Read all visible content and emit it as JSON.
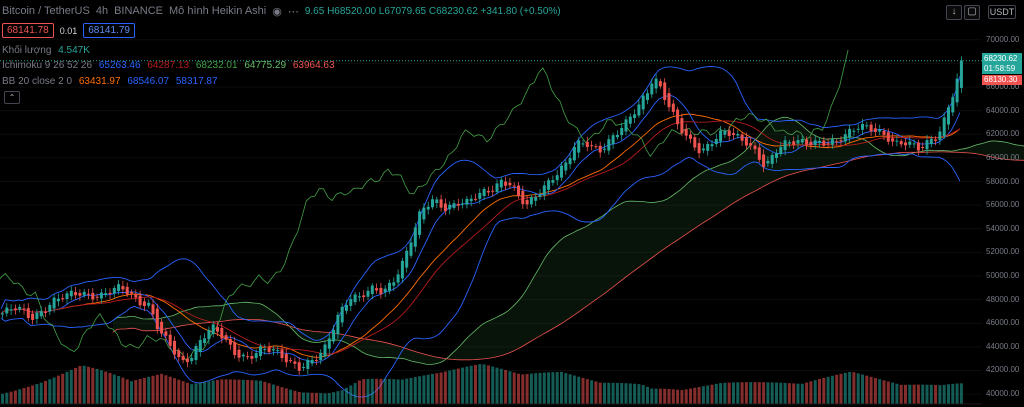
{
  "header": {
    "symbol": "Bitcoin / TetherUS",
    "interval": "4h",
    "exchange": "BINANCE",
    "chart_style": "Mô hình Heikin Ashi",
    "ohlc_open_fragment": "9.65",
    "high": "H68520.00",
    "low": "L67079.65",
    "close": "C68230.62",
    "change": "+341.80 (+0.50%)"
  },
  "trade": {
    "sell_price": "68141.78",
    "spread": "0.01",
    "buy_price": "68141.79"
  },
  "legends": {
    "volume_label": "Khối lượng",
    "volume_value": "4.547K",
    "ichimoku_label": "Ichimoku 9 26 52 26",
    "ichimoku_values": [
      "65263.46",
      "64287.13",
      "68232.01",
      "64775.29",
      "63964.63"
    ],
    "bb_label": "BB 20 close 2 0",
    "bb_values": [
      "63431.97",
      "68546.07",
      "58317.87"
    ]
  },
  "price_scale": {
    "currency": "USDT",
    "ticks": [
      "70000.00",
      "68000.00",
      "66000.00",
      "64000.00",
      "62000.00",
      "60000.00",
      "58000.00",
      "56000.00",
      "54000.00",
      "52000.00",
      "50000.00",
      "48000.00",
      "46000.00",
      "44000.00",
      "42000.00",
      "40000.00"
    ],
    "last_price": "68230.62",
    "countdown": "01:58:59",
    "line_price": "68130.30"
  },
  "colors": {
    "up": "#26a69a",
    "down": "#ef5350",
    "ichimoku_conv": "#2962ff",
    "ichimoku_base": "#b71c1c",
    "lagging": "#43a047",
    "lead_a": "#a5d6a7",
    "lead_b": "#ef9a9a",
    "bb_basis": "#ff6d00",
    "bb_band": "#2962ff"
  },
  "chart_data": {
    "type": "line",
    "title": "Bitcoin / TetherUS 4h BINANCE",
    "ylim": [
      39500,
      71000
    ],
    "close_path": [
      [
        0,
        46800
      ],
      [
        15,
        47200
      ],
      [
        30,
        46500
      ],
      [
        50,
        47800
      ],
      [
        65,
        48200
      ],
      [
        80,
        48600
      ],
      [
        100,
        48400
      ],
      [
        120,
        48900
      ],
      [
        135,
        48100
      ],
      [
        148,
        47600
      ],
      [
        158,
        45200
      ],
      [
        170,
        43800
      ],
      [
        180,
        42600
      ],
      [
        190,
        43400
      ],
      [
        200,
        44800
      ],
      [
        210,
        45600
      ],
      [
        220,
        44800
      ],
      [
        232,
        43600
      ],
      [
        246,
        43200
      ],
      [
        258,
        43700
      ],
      [
        270,
        43600
      ],
      [
        285,
        43000
      ],
      [
        298,
        42400
      ],
      [
        312,
        42800
      ],
      [
        322,
        43400
      ],
      [
        330,
        45200
      ],
      [
        338,
        47000
      ],
      [
        348,
        48400
      ],
      [
        358,
        48200
      ],
      [
        370,
        48700
      ],
      [
        382,
        48600
      ],
      [
        392,
        49800
      ],
      [
        402,
        51400
      ],
      [
        410,
        53200
      ],
      [
        420,
        55400
      ],
      [
        432,
        56400
      ],
      [
        444,
        55900
      ],
      [
        456,
        56300
      ],
      [
        466,
        56100
      ],
      [
        476,
        56700
      ],
      [
        488,
        57300
      ],
      [
        500,
        58200
      ],
      [
        510,
        57800
      ],
      [
        518,
        56400
      ],
      [
        526,
        55800
      ],
      [
        540,
        57400
      ],
      [
        552,
        58600
      ],
      [
        564,
        59400
      ],
      [
        574,
        60900
      ],
      [
        584,
        61200
      ],
      [
        598,
        60800
      ],
      [
        610,
        61700
      ],
      [
        624,
        62700
      ],
      [
        636,
        64200
      ],
      [
        646,
        65800
      ],
      [
        652,
        67100
      ],
      [
        658,
        66200
      ],
      [
        666,
        64600
      ],
      [
        676,
        62600
      ],
      [
        688,
        61400
      ],
      [
        700,
        60700
      ],
      [
        712,
        61600
      ],
      [
        722,
        62100
      ],
      [
        734,
        61700
      ],
      [
        746,
        61400
      ],
      [
        756,
        60500
      ],
      [
        764,
        59200
      ],
      [
        774,
        60400
      ],
      [
        786,
        61200
      ],
      [
        798,
        61600
      ],
      [
        812,
        61400
      ],
      [
        824,
        61100
      ],
      [
        834,
        61100
      ],
      [
        846,
        62200
      ],
      [
        858,
        63000
      ],
      [
        870,
        62400
      ],
      [
        882,
        61700
      ],
      [
        894,
        61200
      ],
      [
        906,
        61600
      ],
      [
        918,
        60800
      ],
      [
        928,
        61200
      ],
      [
        936,
        61600
      ],
      [
        942,
        62900
      ],
      [
        948,
        64700
      ],
      [
        954,
        66300
      ],
      [
        960,
        68230
      ]
    ],
    "volume_profile": [
      [
        0,
        7
      ],
      [
        40,
        10
      ],
      [
        80,
        14
      ],
      [
        130,
        7
      ],
      [
        160,
        9
      ],
      [
        190,
        6
      ],
      [
        220,
        8
      ],
      [
        260,
        9
      ],
      [
        300,
        6
      ],
      [
        340,
        8
      ],
      [
        360,
        12
      ],
      [
        400,
        9
      ],
      [
        440,
        10
      ],
      [
        480,
        12
      ],
      [
        520,
        9
      ],
      [
        560,
        11
      ],
      [
        600,
        9
      ],
      [
        640,
        12
      ],
      [
        680,
        7
      ],
      [
        720,
        8
      ],
      [
        760,
        7
      ],
      [
        800,
        6
      ],
      [
        850,
        10
      ],
      [
        900,
        7
      ],
      [
        940,
        9
      ],
      [
        960,
        12
      ]
    ]
  }
}
